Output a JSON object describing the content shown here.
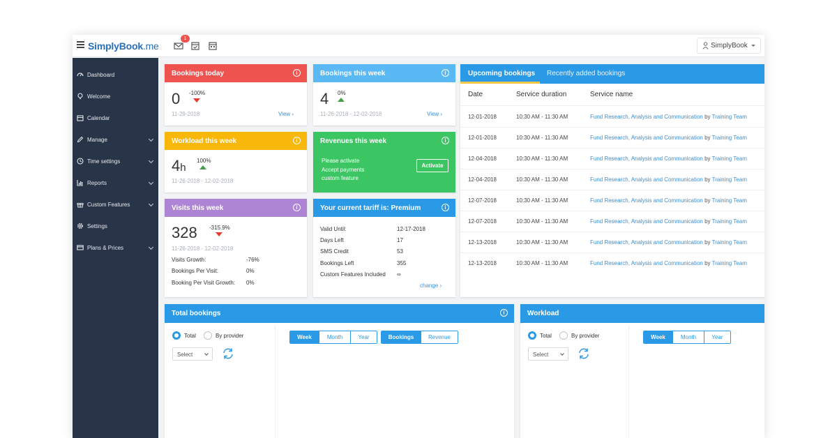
{
  "app": {
    "brand": {
      "simply": "SimplyBook",
      "suffix": ".me"
    },
    "notification_count": "1",
    "user_label": "SimplyBook"
  },
  "sidebar": {
    "items": [
      {
        "label": "Dashboard",
        "icon": "dashboard-icon"
      },
      {
        "label": "Welcome",
        "icon": "bulb-icon"
      },
      {
        "label": "Calendar",
        "icon": "calendar-icon"
      },
      {
        "label": "Manage",
        "icon": "pencil-icon"
      },
      {
        "label": "Time settings",
        "icon": "clock-icon"
      },
      {
        "label": "Reports",
        "icon": "chart-icon"
      },
      {
        "label": "Custom Features",
        "icon": "gift-icon"
      },
      {
        "label": "Settings",
        "icon": "gear-icon"
      },
      {
        "label": "Plans & Prices",
        "icon": "card-icon"
      }
    ]
  },
  "bookings_today": {
    "title": "Bookings today",
    "value": "0",
    "change": "-100%",
    "date": "11-29-2018",
    "link": "View"
  },
  "bookings_week": {
    "title": "Bookings this week",
    "value": "4",
    "change": "0%",
    "date": "11-26-2018 - 12-02-2018",
    "link": "View"
  },
  "workload_week": {
    "title": "Workload this week",
    "value": "4",
    "unit": "h",
    "change": "100%",
    "date": "11-26-2018 - 12-02-2018"
  },
  "revenues_week": {
    "title": "Revenues this week",
    "line1": "Please activate",
    "line2": "Accept payments",
    "line3": "custom feature",
    "button": "Activate"
  },
  "visits_week": {
    "title": "Visits this week",
    "value": "328",
    "change": "-315.9%",
    "date": "11-26-2018 - 12-02-2018",
    "stats": [
      {
        "label": "Visits Growth:",
        "value": "-76%"
      },
      {
        "label": "Bookings Per Visit:",
        "value": "0%"
      },
      {
        "label": "Booking Per Visit Growth:",
        "value": "0%"
      }
    ]
  },
  "tariff": {
    "title": "Your current tariff is: Premium",
    "rows": [
      {
        "label": "Valid Until:",
        "value": "12-17-2018"
      },
      {
        "label": "Days Left",
        "value": "17"
      },
      {
        "label": "SMS Credit",
        "value": "53"
      },
      {
        "label": "Bookings Left",
        "value": "355"
      },
      {
        "label": "Custom Features Included",
        "value": "∞"
      }
    ],
    "link": "change"
  },
  "upcoming": {
    "tabs": [
      "Upcoming bookings",
      "Recently added bookings"
    ],
    "columns": [
      "Date",
      "Service duration",
      "Service name"
    ],
    "by_word": "by",
    "rows": [
      {
        "date": "12-01-2018",
        "duration": "10:30 AM - 11:30 AM",
        "service": "Fund Research, Analysis and Communication",
        "provider": "Training Team"
      },
      {
        "date": "12-01-2018",
        "duration": "10:30 AM - 11:30 AM",
        "service": "Fund Research, Analysis and Communication",
        "provider": "Training Team"
      },
      {
        "date": "12-04-2018",
        "duration": "10:30 AM - 11:30 AM",
        "service": "Fund Research, Analysis and Communication",
        "provider": "Training Team"
      },
      {
        "date": "12-04-2018",
        "duration": "10:30 AM - 11:30 AM",
        "service": "Fund Research, Analysis and Communication",
        "provider": "Training Team"
      },
      {
        "date": "12-07-2018",
        "duration": "10:30 AM - 11:30 AM",
        "service": "Fund Research, Analysis and Communication",
        "provider": "Training Team"
      },
      {
        "date": "12-07-2018",
        "duration": "10:30 AM - 11:30 AM",
        "service": "Fund Research, Analysis and Communication",
        "provider": "Training Team"
      },
      {
        "date": "12-13-2018",
        "duration": "10:30 AM - 11:30 AM",
        "service": "Fund Research, Analysis and Communication",
        "provider": "Training Team"
      },
      {
        "date": "12-13-2018",
        "duration": "10:30 AM - 11:30 AM",
        "service": "Fund Research, Analysis and Communication",
        "provider": "Training Team"
      }
    ]
  },
  "total_bookings": {
    "title": "Total bookings",
    "radio_total": "Total",
    "radio_provider": "By provider",
    "select": "Select",
    "period": [
      "Week",
      "Month",
      "Year"
    ],
    "metric": [
      "Bookings",
      "Revenue"
    ]
  },
  "workload": {
    "title": "Workload",
    "radio_total": "Total",
    "radio_provider": "By provider",
    "select": "Select",
    "period": [
      "Week",
      "Month",
      "Year"
    ]
  },
  "colors": {
    "red": "#ef5350",
    "lightblue": "#5ab9f5",
    "amber": "#f9b70a",
    "green": "#3cc663",
    "purple": "#ae85d4",
    "blue": "#2b9ae6",
    "sidebar": "#283447"
  }
}
